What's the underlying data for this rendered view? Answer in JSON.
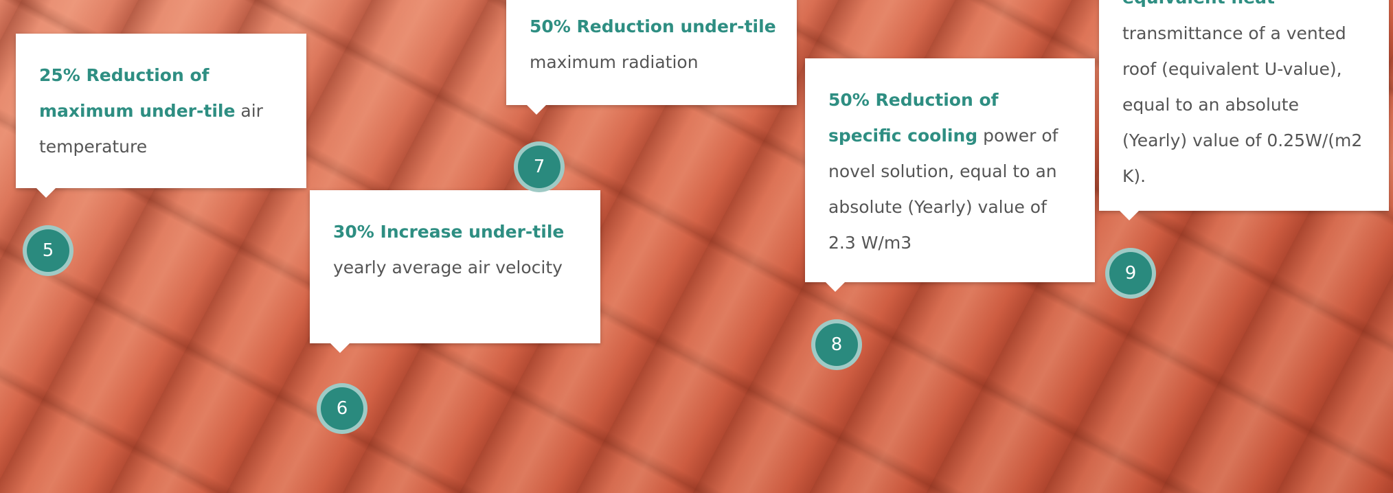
{
  "callouts": [
    {
      "number": "5",
      "highlight": "25% Reduction of maximum under-tile",
      "text": "air temperature"
    },
    {
      "number": "6",
      "highlight": "30% Increase under-tile",
      "text": "yearly average air velocity"
    },
    {
      "number": "7",
      "highlight": "50% Reduction under-tile",
      "text": "maximum radiation"
    },
    {
      "number": "8",
      "highlight": "50% Reduction of specific cooling",
      "text": "power of novel solution, equal to an absolute (Yearly) value of 2.3 W/m3"
    },
    {
      "number": "9",
      "highlight": "equivalent heat",
      "text": "transmittance of a vented roof (equivalent U-value), equal to an absolute (Yearly) value of 0.25W/(m2 K)."
    }
  ]
}
